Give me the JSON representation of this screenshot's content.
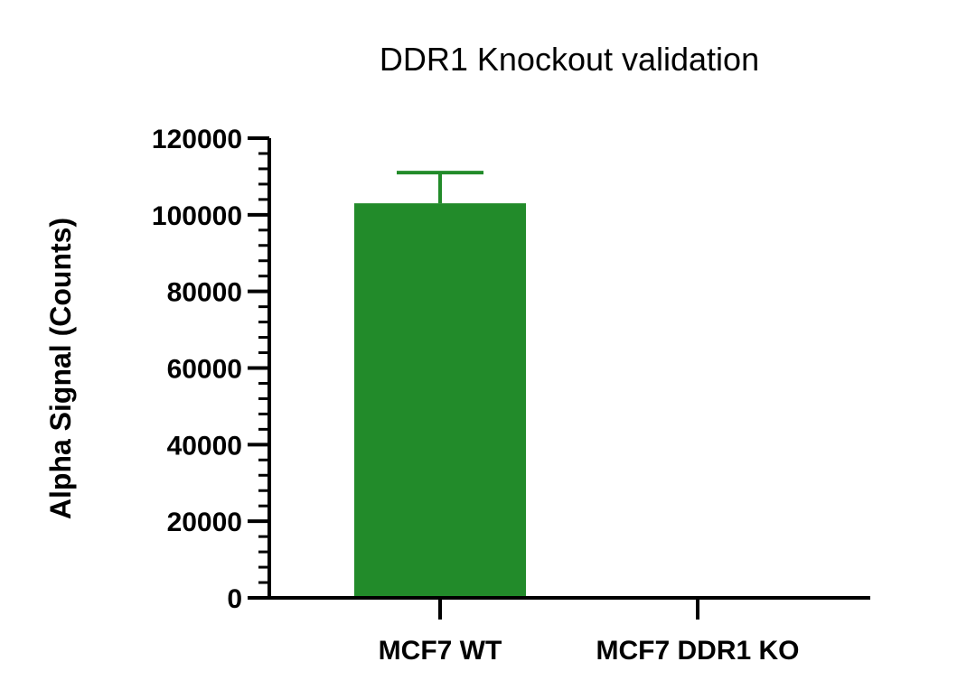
{
  "chart_data": {
    "type": "bar",
    "title": "DDR1 Knockout validation",
    "xlabel": "",
    "ylabel": "Alpha Signal (Counts)",
    "categories": [
      "MCF7 WT",
      "MCF7 DDR1 KO"
    ],
    "values": [
      103000,
      0
    ],
    "error_upper": [
      111000,
      null
    ],
    "ylim": [
      0,
      120000
    ],
    "yticks": [
      0,
      20000,
      40000,
      60000,
      80000,
      100000,
      120000
    ],
    "ytick_labels": [
      "0",
      "20000",
      "40000",
      "60000",
      "80000",
      "100000",
      "120000"
    ],
    "minor_ticks_per_major": 5,
    "bar_color": "#228B2A",
    "axis_color": "#000000",
    "grid": false,
    "legend": "none"
  }
}
